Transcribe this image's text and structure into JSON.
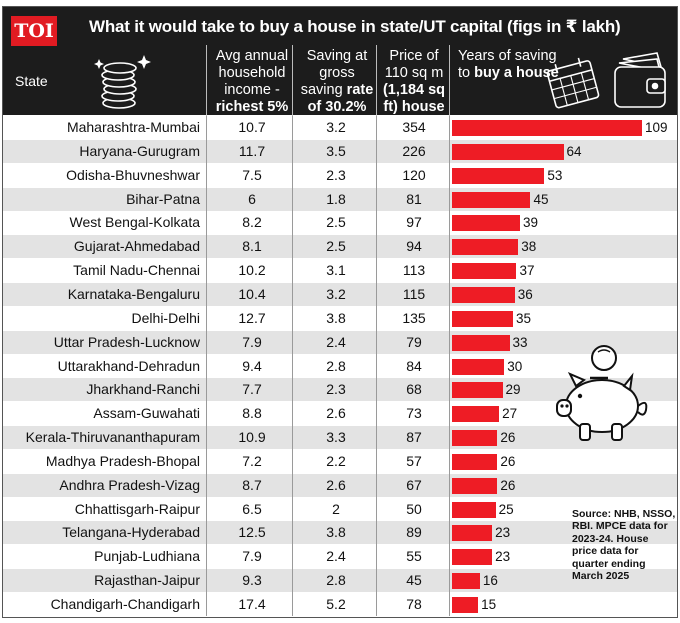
{
  "header": {
    "logo": "TOI",
    "title": "What it would take to buy a house in state/UT capital (figs in ₹ lakh)"
  },
  "columns": {
    "state": "State",
    "income_main": "Avg annual household income - ",
    "income_bold": "richest 5%",
    "saving_main": "Saving at gross saving ",
    "saving_bold": "rate of 30.2%",
    "price_main": "Price of 110 sq m ",
    "price_bold": "(1,184 sq ft) house",
    "years_main": "Years of saving to ",
    "years_bold": "buy a house"
  },
  "icons": {
    "coins": "coin-stack-icon",
    "calendar": "calendar-icon",
    "wallet": "wallet-icon",
    "piggy": "piggy-bank-icon"
  },
  "colors": {
    "bar": "#ee1c25",
    "header": "#1c1c1c",
    "logo": "#e11b22"
  },
  "chart_data": {
    "type": "table",
    "title": "What it would take to buy a house in state/UT capital (figs in ₹ lakh)",
    "headers": [
      "State",
      "Avg annual household income - richest 5%",
      "Saving at gross saving rate of 30.2%",
      "Price of 110 sq m (1,184 sq ft) house",
      "Years of saving to buy a house"
    ],
    "rows": [
      {
        "state": "Maharashtra-Mumbai",
        "income": "10.7",
        "saving": "3.2",
        "price": "354",
        "years": 109
      },
      {
        "state": "Haryana-Gurugram",
        "income": "11.7",
        "saving": "3.5",
        "price": "226",
        "years": 64
      },
      {
        "state": "Odisha-Bhuvneshwar",
        "income": "7.5",
        "saving": "2.3",
        "price": "120",
        "years": 53
      },
      {
        "state": "Bihar-Patna",
        "income": "6",
        "saving": "1.8",
        "price": "81",
        "years": 45
      },
      {
        "state": "West Bengal-Kolkata",
        "income": "8.2",
        "saving": "2.5",
        "price": "97",
        "years": 39
      },
      {
        "state": "Gujarat-Ahmedabad",
        "income": "8.1",
        "saving": "2.5",
        "price": "94",
        "years": 38
      },
      {
        "state": "Tamil Nadu-Chennai",
        "income": "10.2",
        "saving": "3.1",
        "price": "113",
        "years": 37
      },
      {
        "state": "Karnataka-Bengaluru",
        "income": "10.4",
        "saving": "3.2",
        "price": "115",
        "years": 36
      },
      {
        "state": "Delhi-Delhi",
        "income": "12.7",
        "saving": "3.8",
        "price": "135",
        "years": 35
      },
      {
        "state": "Uttar Pradesh-Lucknow",
        "income": "7.9",
        "saving": "2.4",
        "price": "79",
        "years": 33
      },
      {
        "state": "Uttarakhand-Dehradun",
        "income": "9.4",
        "saving": "2.8",
        "price": "84",
        "years": 30
      },
      {
        "state": "Jharkhand-Ranchi",
        "income": "7.7",
        "saving": "2.3",
        "price": "68",
        "years": 29
      },
      {
        "state": "Assam-Guwahati",
        "income": "8.8",
        "saving": "2.6",
        "price": "73",
        "years": 27
      },
      {
        "state": "Kerala-Thiruvananthapuram",
        "income": "10.9",
        "saving": "3.3",
        "price": "87",
        "years": 26
      },
      {
        "state": "Madhya Pradesh-Bhopal",
        "income": "7.2",
        "saving": "2.2",
        "price": "57",
        "years": 26
      },
      {
        "state": "Andhra Pradesh-Vizag",
        "income": "8.7",
        "saving": "2.6",
        "price": "67",
        "years": 26
      },
      {
        "state": "Chhattisgarh-Raipur",
        "income": "6.5",
        "saving": "2",
        "price": "50",
        "years": 25
      },
      {
        "state": "Telangana-Hyderabad",
        "income": "12.5",
        "saving": "3.8",
        "price": "89",
        "years": 23
      },
      {
        "state": "Punjab-Ludhiana",
        "income": "7.9",
        "saving": "2.4",
        "price": "55",
        "years": 23
      },
      {
        "state": "Rajasthan-Jaipur",
        "income": "9.3",
        "saving": "2.8",
        "price": "45",
        "years": 16
      },
      {
        "state": "Chandigarh-Chandigarh",
        "income": "17.4",
        "saving": "5.2",
        "price": "78",
        "years": 15
      }
    ]
  },
  "source": "Source: NHB, NSSO, RBI. MPCE data for 2023-24. House price data for quarter ending March 2025"
}
